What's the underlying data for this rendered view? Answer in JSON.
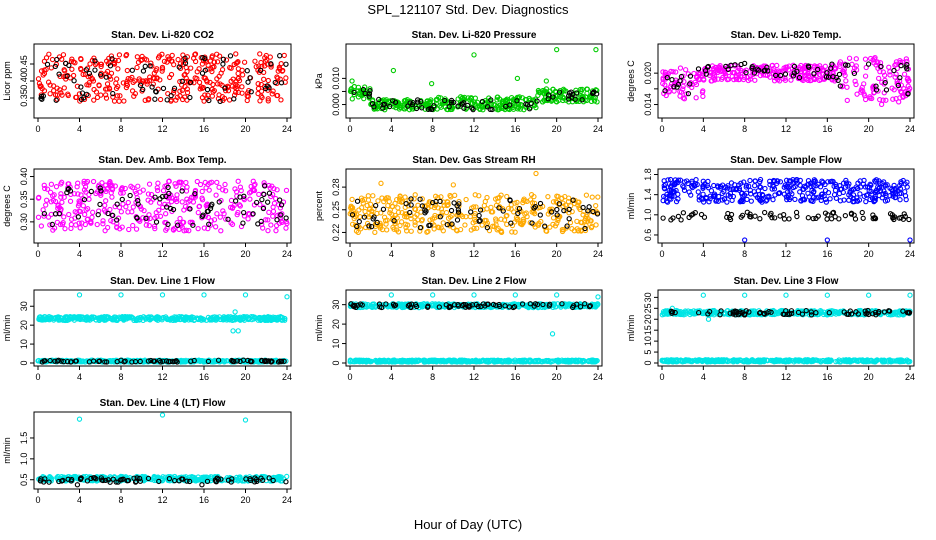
{
  "page": {
    "title": "SPL_121107  Std. Dev. Diagnostics",
    "xlabel": "Hour of Day (UTC)"
  },
  "chart_data": [
    {
      "type": "scatter",
      "title": "Stan. Dev. Li-820 CO2",
      "ylabel": "Licor ppm",
      "xlim": [
        0,
        24
      ],
      "ylim": [
        0.3,
        0.5
      ],
      "xticks": [
        0,
        4,
        8,
        12,
        16,
        20,
        24
      ],
      "yticks": [
        0.35,
        0.4,
        0.45
      ],
      "ytick_labels": [
        "0.35",
        "0.40",
        "0.45"
      ],
      "series": [
        {
          "color": "#ff0000",
          "segments": [
            {
              "x0": 0,
              "x1": 24,
              "ylo": 0.34,
              "yhi": 0.48
            }
          ],
          "outliers": []
        },
        {
          "color": "#000000",
          "segments": [
            {
              "x0": 0,
              "x1": 24,
              "ylo": 0.34,
              "yhi": 0.48
            }
          ],
          "outliers": []
        }
      ]
    },
    {
      "type": "scatter",
      "title": "Stan. Dev. Li-820 Pressure",
      "ylabel": "kPa",
      "xlim": [
        0,
        24
      ],
      "ylim": [
        -0.004,
        0.022
      ],
      "xticks": [
        0,
        4,
        8,
        12,
        16,
        20,
        24
      ],
      "yticks": [
        0.0,
        0.005,
        0.01
      ],
      "ytick_labels": [
        "0.000",
        "",
        "0.010"
      ],
      "series": [
        {
          "color": "#00cc00",
          "segments": [
            {
              "x0": 0,
              "x1": 2,
              "ylo": 0.002,
              "yhi": 0.007
            },
            {
              "x0": 2,
              "x1": 8,
              "ylo": -0.002,
              "yhi": 0.002
            },
            {
              "x0": 8,
              "x1": 18,
              "ylo": -0.002,
              "yhi": 0.003
            },
            {
              "x0": 18,
              "x1": 24,
              "ylo": 0.001,
              "yhi": 0.006
            }
          ],
          "outliers": [
            {
              "x": 0.2,
              "y": 0.009
            },
            {
              "x": 4.2,
              "y": 0.013
            },
            {
              "x": 7.9,
              "y": 0.008
            },
            {
              "x": 12.0,
              "y": 0.019
            },
            {
              "x": 16.2,
              "y": 0.01
            },
            {
              "x": 19.0,
              "y": 0.009
            },
            {
              "x": 20.0,
              "y": 0.021
            },
            {
              "x": 23.8,
              "y": 0.021
            }
          ]
        },
        {
          "color": "#000000",
          "segments": [
            {
              "x0": 0,
              "x1": 2,
              "ylo": 0.002,
              "yhi": 0.006
            },
            {
              "x0": 2,
              "x1": 18,
              "ylo": -0.002,
              "yhi": 0.002
            },
            {
              "x0": 18,
              "x1": 24,
              "ylo": 0.001,
              "yhi": 0.005
            }
          ],
          "outliers": []
        }
      ]
    },
    {
      "type": "scatter",
      "title": "Stan. Dev. Li-820 Temp.",
      "ylabel": "degrees C",
      "xlim": [
        0,
        24
      ],
      "ylim": [
        0.012,
        0.025
      ],
      "xticks": [
        0,
        4,
        8,
        12,
        16,
        20,
        24
      ],
      "yticks": [
        0.014,
        0.017,
        0.02
      ],
      "ytick_labels": [
        "0.014",
        "",
        "0.020"
      ],
      "series": [
        {
          "color": "#ff00ff",
          "segments": [
            {
              "x0": 0,
              "x1": 4,
              "ylo": 0.015,
              "yhi": 0.021
            },
            {
              "x0": 4,
              "x1": 17,
              "ylo": 0.0185,
              "yhi": 0.0215
            },
            {
              "x0": 17,
              "x1": 24,
              "ylo": 0.014,
              "yhi": 0.023
            }
          ],
          "outliers": []
        },
        {
          "color": "#000000",
          "segments": [
            {
              "x0": 0,
              "x1": 4,
              "ylo": 0.016,
              "yhi": 0.021
            },
            {
              "x0": 4,
              "x1": 17,
              "ylo": 0.019,
              "yhi": 0.022
            },
            {
              "x0": 17,
              "x1": 24,
              "ylo": 0.016,
              "yhi": 0.022
            }
          ],
          "outliers": []
        }
      ]
    },
    {
      "type": "scatter",
      "title": "Stan. Dev. Amb. Box Temp.",
      "ylabel": "degrees C",
      "xlim": [
        0,
        24
      ],
      "ylim": [
        0.26,
        0.41
      ],
      "xticks": [
        0,
        4,
        8,
        12,
        16,
        20,
        24
      ],
      "yticks": [
        0.3,
        0.35,
        0.4
      ],
      "ytick_labels": [
        "0.30",
        "0.35",
        "0.40"
      ],
      "series": [
        {
          "color": "#ff00ff",
          "segments": [
            {
              "x0": 0,
              "x1": 24,
              "ylo": 0.28,
              "yhi": 0.39
            }
          ],
          "outliers": []
        },
        {
          "color": "#000000",
          "segments": [
            {
              "x0": 0,
              "x1": 24,
              "ylo": 0.29,
              "yhi": 0.38
            }
          ],
          "outliers": []
        }
      ]
    },
    {
      "type": "scatter",
      "title": "Stan. Dev. Gas Stream RH",
      "ylabel": "percent",
      "xlim": [
        0,
        24
      ],
      "ylim": [
        0.21,
        0.3
      ],
      "xticks": [
        0,
        4,
        8,
        12,
        16,
        20,
        24
      ],
      "yticks": [
        0.22,
        0.25,
        0.28
      ],
      "ytick_labels": [
        "0.22",
        "0.25",
        "0.28"
      ],
      "series": [
        {
          "color": "#ffaa00",
          "segments": [
            {
              "x0": 0,
              "x1": 24,
              "ylo": 0.22,
              "yhi": 0.27
            }
          ],
          "outliers": [
            {
              "x": 18,
              "y": 0.298
            },
            {
              "x": 3,
              "y": 0.285
            },
            {
              "x": 10,
              "y": 0.283
            }
          ]
        },
        {
          "color": "#000000",
          "segments": [
            {
              "x0": 0,
              "x1": 24,
              "ylo": 0.225,
              "yhi": 0.265
            }
          ],
          "outliers": []
        }
      ]
    },
    {
      "type": "scatter",
      "title": "Stan. Dev. Sample Flow",
      "ylabel": "ml/min",
      "xlim": [
        0,
        24
      ],
      "ylim": [
        0.5,
        1.85
      ],
      "xticks": [
        0,
        4,
        8,
        12,
        16,
        20,
        24
      ],
      "yticks": [
        0.6,
        1.0,
        1.4,
        1.8
      ],
      "ytick_labels": [
        "0.6",
        "1.0",
        "1.4",
        "1.8"
      ],
      "series": [
        {
          "color": "#0000ff",
          "segments": [
            {
              "x0": 0,
              "x1": 24,
              "ylo": 1.25,
              "yhi": 1.7
            }
          ],
          "outliers": [
            {
              "x": 8,
              "y": 0.5
            },
            {
              "x": 16,
              "y": 0.5
            },
            {
              "x": 24,
              "y": 0.5
            }
          ]
        },
        {
          "color": "#000000",
          "segments": [
            {
              "x0": 0,
              "x1": 24,
              "ylo": 0.9,
              "yhi": 1.05
            }
          ],
          "outliers": []
        }
      ]
    },
    {
      "type": "scatter",
      "title": "Stan. Dev. Line 1 Flow",
      "ylabel": "ml/min",
      "xlim": [
        0,
        24
      ],
      "ylim": [
        0,
        37
      ],
      "xticks": [
        0,
        4,
        8,
        12,
        16,
        20,
        24
      ],
      "yticks": [
        0,
        10,
        20,
        30
      ],
      "ytick_labels": [
        "0",
        "10",
        "20",
        "30"
      ],
      "series": [
        {
          "color": "#00e5e5",
          "segments": [
            {
              "x0": 0,
              "x1": 24,
              "ylo": 22.5,
              "yhi": 24.5
            },
            {
              "x0": 0,
              "x1": 24,
              "ylo": 0.5,
              "yhi": 1.5
            }
          ],
          "outliers": [
            {
              "x": 4,
              "y": 36
            },
            {
              "x": 8,
              "y": 36
            },
            {
              "x": 12,
              "y": 36
            },
            {
              "x": 16,
              "y": 36
            },
            {
              "x": 20,
              "y": 36
            },
            {
              "x": 24,
              "y": 35
            },
            {
              "x": 18.8,
              "y": 17
            },
            {
              "x": 19.3,
              "y": 17
            },
            {
              "x": 19.0,
              "y": 27
            }
          ]
        },
        {
          "color": "#000000",
          "segments": [
            {
              "x0": 0,
              "x1": 24,
              "ylo": 0.5,
              "yhi": 1.5
            }
          ],
          "outliers": []
        }
      ]
    },
    {
      "type": "scatter",
      "title": "Stan. Dev. Line 2 Flow",
      "ylabel": "ml/min",
      "xlim": [
        0,
        24
      ],
      "ylim": [
        0,
        36
      ],
      "xticks": [
        0,
        4,
        8,
        12,
        16,
        20,
        24
      ],
      "yticks": [
        0,
        10,
        20,
        30
      ],
      "ytick_labels": [
        "0",
        "10",
        "20",
        "30"
      ],
      "series": [
        {
          "color": "#00e5e5",
          "segments": [
            {
              "x0": 0,
              "x1": 24,
              "ylo": 28.5,
              "yhi": 30.5
            },
            {
              "x0": 0,
              "x1": 24,
              "ylo": 0.5,
              "yhi": 1.5
            }
          ],
          "outliers": [
            {
              "x": 4,
              "y": 35
            },
            {
              "x": 8,
              "y": 35
            },
            {
              "x": 12,
              "y": 35
            },
            {
              "x": 16,
              "y": 35
            },
            {
              "x": 20,
              "y": 35
            },
            {
              "x": 24,
              "y": 34
            },
            {
              "x": 19.6,
              "y": 15
            }
          ]
        },
        {
          "color": "#000000",
          "segments": [
            {
              "x0": 0,
              "x1": 24,
              "ylo": 28.5,
              "yhi": 30.5
            }
          ],
          "outliers": []
        }
      ]
    },
    {
      "type": "scatter",
      "title": "Stan. Dev. Line 3 Flow",
      "ylabel": "ml/min",
      "xlim": [
        0,
        24
      ],
      "ylim": [
        0,
        32
      ],
      "xticks": [
        0,
        4,
        8,
        12,
        16,
        20,
        24
      ],
      "yticks": [
        0,
        5,
        10,
        15,
        20,
        25,
        30
      ],
      "ytick_labels": [
        "0",
        "5",
        "10",
        "15",
        "20",
        "25",
        "30"
      ],
      "series": [
        {
          "color": "#00e5e5",
          "segments": [
            {
              "x0": 0,
              "x1": 24,
              "ylo": 22,
              "yhi": 24
            },
            {
              "x0": 0,
              "x1": 24,
              "ylo": 0.5,
              "yhi": 1.5
            }
          ],
          "outliers": [
            {
              "x": 4,
              "y": 31
            },
            {
              "x": 8,
              "y": 31
            },
            {
              "x": 12,
              "y": 31
            },
            {
              "x": 16,
              "y": 31
            },
            {
              "x": 20,
              "y": 31
            },
            {
              "x": 24,
              "y": 31
            },
            {
              "x": 1,
              "y": 25
            },
            {
              "x": 4.5,
              "y": 20
            }
          ]
        },
        {
          "color": "#000000",
          "segments": [
            {
              "x0": 0,
              "x1": 24,
              "ylo": 22,
              "yhi": 24
            }
          ],
          "outliers": []
        }
      ]
    },
    {
      "type": "scatter",
      "title": "Stan. Dev. Line 4 (LT) Flow",
      "ylabel": "ml/min",
      "xlim": [
        0,
        24
      ],
      "ylim": [
        0.35,
        2.05
      ],
      "xticks": [
        0,
        4,
        8,
        12,
        16,
        20,
        24
      ],
      "yticks": [
        0.5,
        1.0,
        1.5
      ],
      "ytick_labels": [
        "0.5",
        "1.0",
        "1.5"
      ],
      "series": [
        {
          "color": "#00e5e5",
          "segments": [
            {
              "x0": 0,
              "x1": 24,
              "ylo": 0.47,
              "yhi": 0.58
            }
          ],
          "outliers": [
            {
              "x": 4,
              "y": 1.95
            },
            {
              "x": 12,
              "y": 2.05
            },
            {
              "x": 20,
              "y": 1.93
            }
          ]
        },
        {
          "color": "#000000",
          "segments": [
            {
              "x0": 0,
              "x1": 24,
              "ylo": 0.44,
              "yhi": 0.55
            }
          ],
          "outliers": [
            {
              "x": 3.8,
              "y": 0.38
            },
            {
              "x": 15.8,
              "y": 0.38
            }
          ]
        }
      ]
    }
  ]
}
